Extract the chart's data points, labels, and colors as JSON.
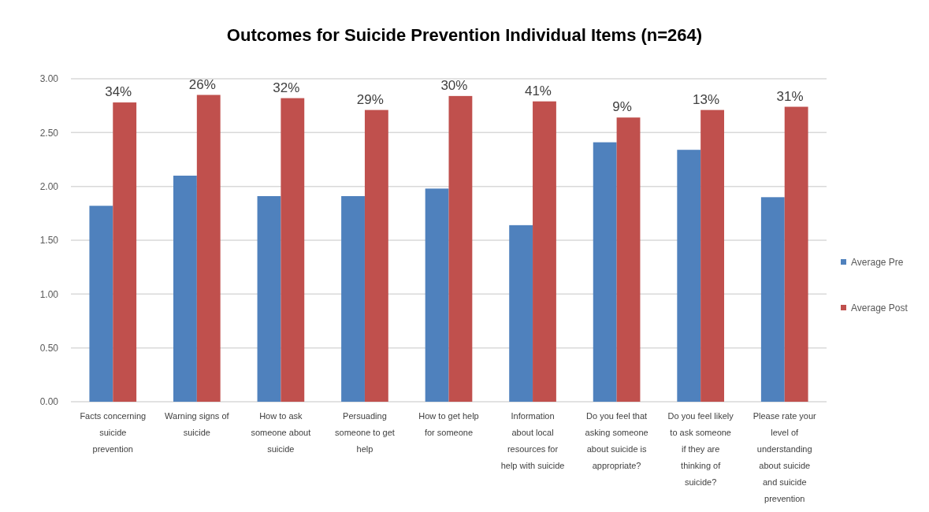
{
  "chart_data": {
    "type": "bar",
    "title": "Outcomes for Suicide Prevention Individual Items (n=264)",
    "categories": [
      "Facts concerning suicide prevention",
      "Warning signs of suicide",
      "How to ask someone about suicide",
      "Persuading someone to get help",
      "How to get help for someone",
      "Information about local resources for help with suicide",
      "Do you feel that asking someone about suicide is appropriate?",
      "Do you feel likely to ask someone if they are thinking of suicide?",
      "Please rate your level of understanding about suicide and suicide prevention"
    ],
    "series": [
      {
        "name": "Average Pre",
        "color": "#4f81bd",
        "values": [
          1.82,
          2.1,
          1.91,
          1.91,
          1.98,
          1.64,
          2.41,
          2.34,
          1.9
        ]
      },
      {
        "name": "Average Post",
        "color": "#c0504d",
        "values": [
          2.78,
          2.85,
          2.82,
          2.71,
          2.84,
          2.79,
          2.64,
          2.71,
          2.74
        ]
      }
    ],
    "ylim": [
      0,
      3
    ],
    "yticks": [
      {
        "value": 0,
        "label": "0.00"
      },
      {
        "value": 0.5,
        "label": "0.50"
      },
      {
        "value": 1,
        "label": "1.00"
      },
      {
        "value": 1.5,
        "label": "1.50"
      },
      {
        "value": 2,
        "label": "2.00"
      },
      {
        "value": 2.5,
        "label": "2.50"
      },
      {
        "value": 3,
        "label": "3.00"
      }
    ],
    "grid": "y",
    "legend": "right",
    "annotations": [
      {
        "text": "34%",
        "x": "Facts concerning suicide prevention",
        "y": 2.78
      },
      {
        "text": "26%",
        "x": "Warning signs of suicide",
        "y": 2.85
      },
      {
        "text": "32%",
        "x": "How to ask someone about suicide",
        "y": 2.82
      },
      {
        "text": "29%",
        "x": "Persuading someone to get help",
        "y": 2.71
      },
      {
        "text": "30%",
        "x": "How to get help for someone",
        "y": 2.84
      },
      {
        "text": "41%",
        "x": "Information about local resources for help with suicide",
        "y": 2.79
      },
      {
        "text": "9%",
        "x": "Do you feel that asking someone about suicide is appropriate?",
        "y": 2.64
      },
      {
        "text": "13%",
        "x": "Do you feel likely to ask someone if they are thinking of suicide?",
        "y": 2.71
      },
      {
        "text": "31%",
        "x": "Please rate your level of understanding about suicide and suicide prevention",
        "y": 2.74
      }
    ]
  }
}
